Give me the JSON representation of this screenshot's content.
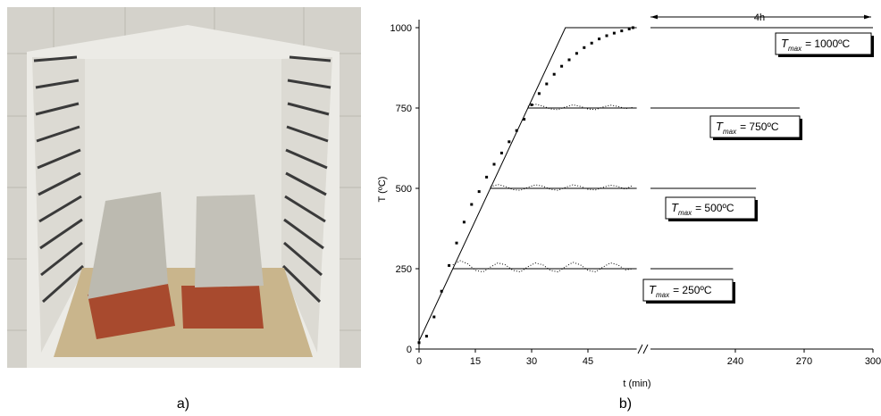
{
  "panel_a": {
    "label": "a)"
  },
  "chart_data": {
    "type": "line",
    "label": "b)",
    "ylabel": "T (ºC)",
    "xlabel": "t (min)",
    "ylim": [
      0,
      1000
    ],
    "yticks": [
      0,
      250,
      500,
      750,
      1000
    ],
    "x_segments": [
      {
        "xlim": [
          0,
          58
        ],
        "xticks": [
          0,
          15,
          30,
          45
        ]
      },
      {
        "xlim": [
          203,
          300
        ],
        "xticks": [
          240,
          270,
          300
        ]
      }
    ],
    "color": "#000000",
    "series": [
      {
        "style": "line",
        "x": [
          0,
          39,
          58,
          null,
          203,
          300
        ],
        "y": [
          25,
          1000,
          1000,
          null,
          1000,
          1000
        ]
      },
      {
        "style": "line",
        "x": [
          9,
          58,
          null,
          203,
          239
        ],
        "y": [
          250,
          250,
          null,
          250,
          250
        ]
      },
      {
        "style": "line",
        "x": [
          19,
          58,
          null,
          203,
          249
        ],
        "y": [
          500,
          500,
          null,
          500,
          500
        ]
      },
      {
        "style": "line",
        "x": [
          29,
          58,
          null,
          203,
          268
        ],
        "y": [
          750,
          750,
          null,
          750,
          750
        ]
      },
      {
        "style": "markers",
        "x": [
          0,
          2,
          4,
          6,
          8,
          10,
          12,
          14,
          16,
          18,
          20,
          22,
          24,
          26,
          28,
          30,
          32,
          34,
          36,
          38,
          40,
          42,
          44,
          46,
          48,
          50,
          52,
          54,
          56,
          57
        ],
        "y": [
          20,
          40,
          100,
          180,
          260,
          330,
          395,
          450,
          490,
          535,
          575,
          610,
          645,
          680,
          715,
          760,
          795,
          825,
          855,
          880,
          900,
          920,
          938,
          952,
          965,
          975,
          983,
          990,
          996,
          1000
        ]
      },
      {
        "style": "dotted",
        "x": [
          9,
          11,
          13,
          15,
          17,
          19,
          21,
          23,
          25,
          27,
          29,
          31,
          33,
          35,
          37,
          39,
          41,
          43,
          45,
          47,
          49,
          51,
          53,
          55,
          57
        ],
        "y": [
          262,
          275,
          265,
          245,
          240,
          255,
          268,
          262,
          245,
          240,
          256,
          268,
          262,
          245,
          240,
          256,
          270,
          262,
          245,
          240,
          255,
          268,
          262,
          246,
          250
        ]
      },
      {
        "style": "dotted",
        "x": [
          19,
          21,
          23,
          25,
          27,
          29,
          31,
          33,
          35,
          37,
          39,
          41,
          43,
          45,
          47,
          49,
          51,
          53,
          55,
          57
        ],
        "y": [
          505,
          512,
          506,
          496,
          494,
          503,
          511,
          507,
          497,
          494,
          503,
          511,
          506,
          497,
          495,
          503,
          510,
          506,
          497,
          510
        ]
      },
      {
        "style": "dotted",
        "x": [
          29,
          31,
          33,
          35,
          37,
          39,
          41,
          43,
          45,
          47,
          49,
          51,
          53,
          55,
          57
        ],
        "y": [
          755,
          762,
          756,
          747,
          745,
          753,
          760,
          755,
          747,
          745,
          753,
          759,
          755,
          748,
          752
        ]
      }
    ],
    "annotation": "4h",
    "tmax_labels": [
      {
        "symbol": "T",
        "subscript": "max",
        "text": "= 1000ºC"
      },
      {
        "symbol": "T",
        "subscript": "max",
        "text": "= 750ºC"
      },
      {
        "symbol": "T",
        "subscript": "max",
        "text": "= 500ºC"
      },
      {
        "symbol": "T",
        "subscript": "max",
        "text": "= 250ºC"
      }
    ]
  }
}
